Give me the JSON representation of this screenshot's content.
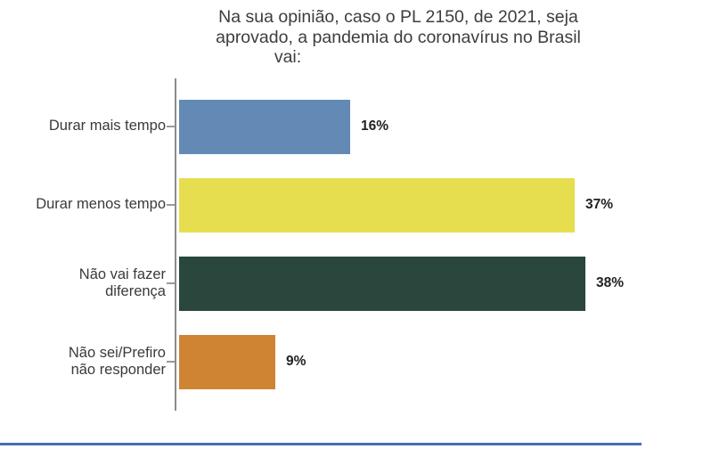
{
  "title": {
    "lines": [
      "Na sua opinião, caso o PL 2150, de 2021, seja",
      "aprovado, a pandemia do coronavírus no Brasil",
      "vai:"
    ]
  },
  "chart_data": {
    "type": "bar",
    "orientation": "horizontal",
    "title": "Na sua opinião, caso o PL 2150, de 2021, seja aprovado, a pandemia do coronavírus no Brasil vai:",
    "categories": [
      "Durar mais tempo",
      "Durar menos tempo",
      "Não vai fazer diferença",
      "Não sei/Prefiro não responder"
    ],
    "values": [
      16,
      37,
      38,
      9
    ],
    "value_labels": [
      "16%",
      "37%",
      "38%",
      "9%"
    ],
    "bar_colors": [
      "#6389b5",
      "#e7de4f",
      "#29473c",
      "#cf8434"
    ],
    "xlabel": "",
    "ylabel": "",
    "xlim": [
      0,
      43
    ],
    "grid": false,
    "legend": false,
    "axis_color": "#8b8b8b",
    "value_label_style": "bold, outside bar end",
    "bottom_divider_color": "#4371b3"
  },
  "layout_hints": {
    "px_per_percent_note": "bars scaled ~12px per percentage point in source image"
  }
}
